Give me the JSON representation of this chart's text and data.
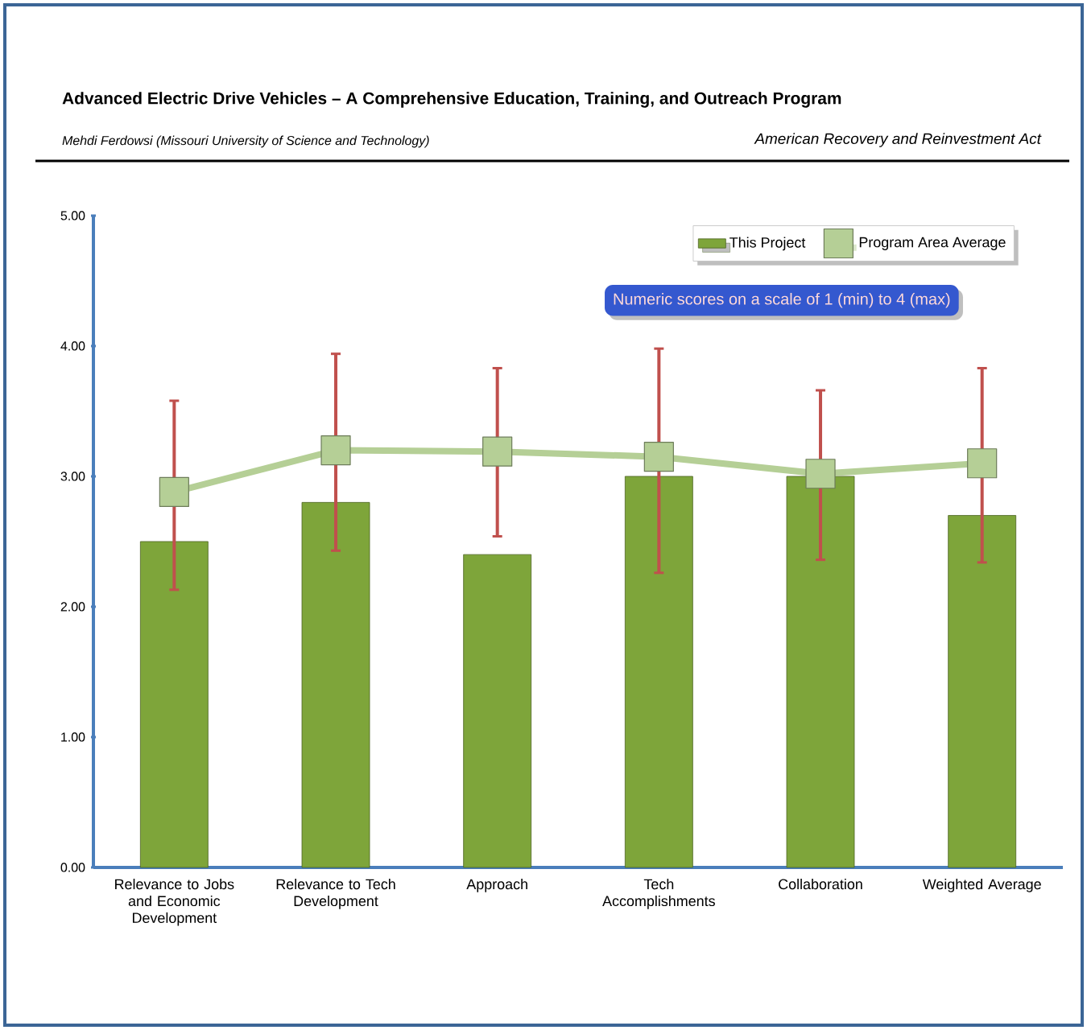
{
  "chart_data": {
    "type": "bar",
    "title": "Advanced Electric Drive Vehicles – A Comprehensive Education, Training, and Outreach Program",
    "subtitle": "Mehdi Ferdowsi (Missouri University of Science and Technology)",
    "annotations": [
      "American Recovery and Reinvestment Act",
      "Numeric scores on a scale of 1 (min) to 4 (max)"
    ],
    "categories": [
      "Relevance to Jobs and Economic Development",
      "Relevance to Tech Development",
      "Approach",
      "Tech Accomplishments",
      "Collaboration",
      "Weighted Average"
    ],
    "series": [
      {
        "name": "This Project",
        "color": "#7ea53a",
        "values": [
          2.5,
          2.8,
          2.4,
          3.0,
          3.0,
          2.7
        ]
      },
      {
        "name": "Program Area Average",
        "type": "line",
        "color": "#b5cf96",
        "values": [
          2.88,
          3.2,
          3.19,
          3.15,
          3.02,
          3.1
        ],
        "errors": [
          [
            2.13,
            3.58
          ],
          [
            2.43,
            3.94
          ],
          [
            2.54,
            3.83
          ],
          [
            2.26,
            3.98
          ],
          [
            2.36,
            3.66
          ],
          [
            2.34,
            3.83
          ]
        ]
      }
    ],
    "ylim": [
      0,
      5
    ],
    "yticks": [
      {
        "value": 0,
        "label": "0.00"
      },
      {
        "value": 1,
        "label": "1.00"
      },
      {
        "value": 2,
        "label": "2.00"
      },
      {
        "value": 3,
        "label": "3.00"
      },
      {
        "value": 4,
        "label": "4.00"
      },
      {
        "value": 5,
        "label": "5.00"
      }
    ],
    "marker": "square",
    "legend": "top right",
    "grid": false
  }
}
